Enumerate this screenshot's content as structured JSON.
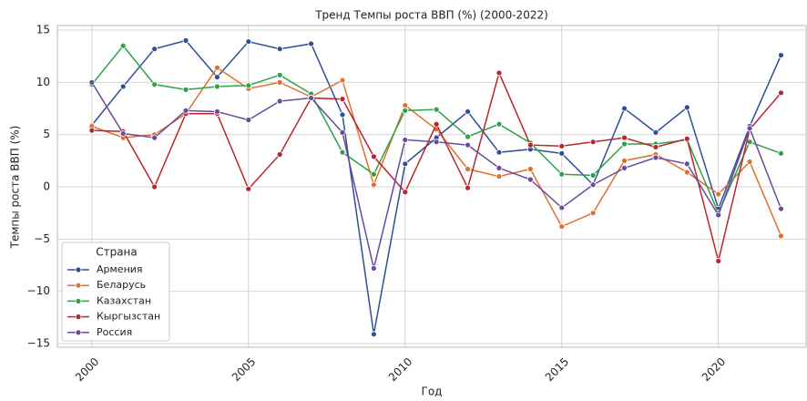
{
  "chart_data": {
    "type": "line",
    "title": "Тренд Темпы роста ВВП (%) (2000-2022)",
    "xlabel": "Год",
    "ylabel": "Темпы роста ВВП (%)",
    "legend_title": "Страна",
    "legend_loc": "lower left",
    "grid": true,
    "x": [
      2000,
      2001,
      2002,
      2003,
      2004,
      2005,
      2006,
      2007,
      2008,
      2009,
      2010,
      2011,
      2012,
      2013,
      2014,
      2015,
      2016,
      2017,
      2018,
      2019,
      2020,
      2021,
      2022
    ],
    "xlim": [
      1998.9,
      2022.8
    ],
    "xticks": [
      2000,
      2005,
      2010,
      2015,
      2020
    ],
    "ylim": [
      -15.35,
      15.44
    ],
    "yticks": [
      {
        "value": -15,
        "label": "−15"
      },
      {
        "value": -10,
        "label": "−10"
      },
      {
        "value": -5,
        "label": "−5"
      },
      0,
      5,
      10,
      15
    ],
    "series": [
      {
        "name": "Армения",
        "color": "#2e4f96",
        "values": [
          5.9,
          9.6,
          13.2,
          14.0,
          10.5,
          13.9,
          13.2,
          13.7,
          6.9,
          -14.1,
          2.2,
          4.7,
          7.2,
          3.3,
          3.6,
          3.2,
          0.2,
          7.5,
          5.2,
          7.6,
          -2.1,
          5.8,
          12.6
        ]
      },
      {
        "name": "Беларусь",
        "color": "#e0702e",
        "values": [
          5.8,
          4.7,
          5.0,
          7.0,
          11.4,
          9.4,
          10.0,
          8.6,
          10.2,
          0.2,
          7.8,
          5.5,
          1.7,
          1.0,
          1.7,
          -3.8,
          -2.5,
          2.5,
          3.1,
          1.4,
          -0.7,
          2.4,
          -4.7
        ]
      },
      {
        "name": "Казахстан",
        "color": "#2ea24a",
        "values": [
          9.8,
          13.5,
          9.8,
          9.3,
          9.6,
          9.7,
          10.7,
          8.9,
          3.3,
          1.2,
          7.3,
          7.4,
          4.8,
          6.0,
          4.2,
          1.2,
          1.1,
          4.1,
          4.1,
          4.5,
          -2.5,
          4.3,
          3.2
        ]
      },
      {
        "name": "Кыргызстан",
        "color": "#b8262e",
        "values": [
          5.4,
          5.3,
          0.0,
          7.0,
          7.0,
          -0.2,
          3.1,
          8.5,
          8.4,
          2.9,
          -0.5,
          6.0,
          -0.1,
          10.9,
          4.0,
          3.9,
          4.3,
          4.7,
          3.8,
          4.6,
          -7.1,
          5.5,
          9.0
        ]
      },
      {
        "name": "Россия",
        "color": "#6a4a9c",
        "values": [
          10.0,
          5.1,
          4.7,
          7.3,
          7.2,
          6.4,
          8.2,
          8.5,
          5.2,
          -7.8,
          4.5,
          4.3,
          4.0,
          1.8,
          0.7,
          -2.0,
          0.2,
          1.8,
          2.8,
          2.2,
          -2.7,
          5.6,
          -2.1
        ]
      }
    ]
  }
}
